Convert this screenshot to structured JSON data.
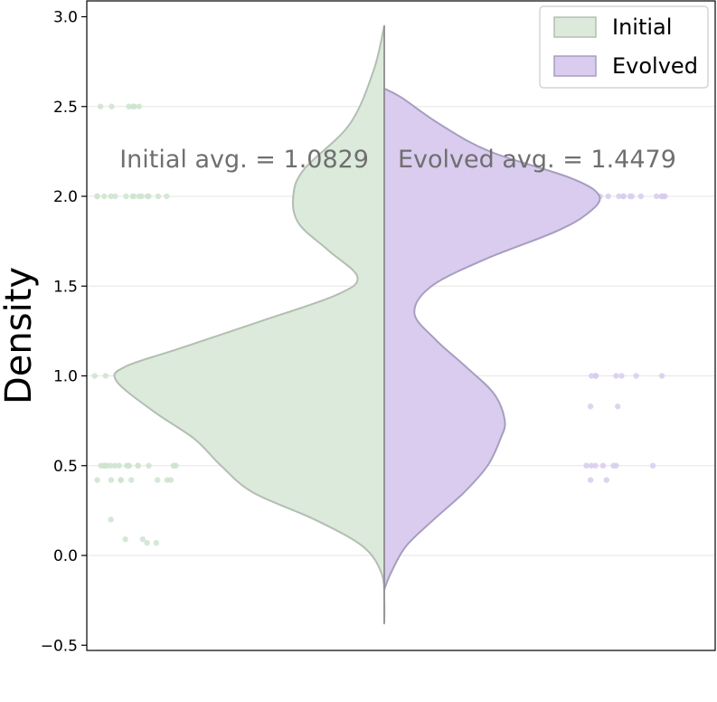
{
  "chart_data": {
    "type": "violin",
    "ylabel": "Density",
    "xlabel": "",
    "ylim": [
      -0.5,
      3.0
    ],
    "yticks": [
      -0.5,
      0.0,
      0.5,
      1.0,
      1.5,
      2.0,
      2.5,
      3.0
    ],
    "ytick_labels": [
      "−0.5",
      "0.0",
      "0.5",
      "1.0",
      "1.5",
      "2.0",
      "2.5",
      "3.0"
    ],
    "grid": "horizontal",
    "legend": {
      "placement": "top-right",
      "entries": [
        {
          "label": "Initial",
          "color": "#dbeadb"
        },
        {
          "label": "Evolved",
          "color": "#d9ccee"
        }
      ]
    },
    "annotations": [
      {
        "text": "Initial avg. = 1.0829",
        "series": "Initial"
      },
      {
        "text": "Evolved avg. = 1.4479",
        "series": "Evolved"
      }
    ],
    "series": [
      {
        "name": "Initial",
        "side": "left",
        "fill": "#dbeadb",
        "edge": "#b3beb3",
        "dot_color": "#cfe3cf",
        "mean": 1.0829,
        "density_profile": [
          {
            "y": -0.38,
            "w": 0.0
          },
          {
            "y": -0.25,
            "w": 0.0
          },
          {
            "y": -0.1,
            "w": 0.01
          },
          {
            "y": 0.05,
            "w": 0.08
          },
          {
            "y": 0.2,
            "w": 0.26
          },
          {
            "y": 0.35,
            "w": 0.49
          },
          {
            "y": 0.5,
            "w": 0.61
          },
          {
            "y": 0.65,
            "w": 0.71
          },
          {
            "y": 0.8,
            "w": 0.86
          },
          {
            "y": 0.97,
            "w": 1.0
          },
          {
            "y": 1.05,
            "w": 0.97
          },
          {
            "y": 1.15,
            "w": 0.77
          },
          {
            "y": 1.3,
            "w": 0.47
          },
          {
            "y": 1.45,
            "w": 0.18
          },
          {
            "y": 1.55,
            "w": 0.1
          },
          {
            "y": 1.7,
            "w": 0.21
          },
          {
            "y": 1.85,
            "w": 0.32
          },
          {
            "y": 2.0,
            "w": 0.34
          },
          {
            "y": 2.15,
            "w": 0.3
          },
          {
            "y": 2.4,
            "w": 0.13
          },
          {
            "y": 2.7,
            "w": 0.04
          },
          {
            "y": 2.95,
            "w": 0.0
          }
        ],
        "points": [
          {
            "y": 2.5,
            "count": 6
          },
          {
            "y": 2.0,
            "count": 14
          },
          {
            "y": 1.0,
            "count": 3
          },
          {
            "y": 0.5,
            "count": 16
          },
          {
            "y": 0.42,
            "count": 8
          },
          {
            "y": 0.2,
            "count": 1
          },
          {
            "y": 0.09,
            "count": 2
          },
          {
            "y": 0.07,
            "count": 2
          }
        ]
      },
      {
        "name": "Evolved",
        "side": "right",
        "fill": "#d9ccee",
        "edge": "#a69ec0",
        "dot_color": "#d8cdef",
        "mean": 1.4479,
        "density_profile": [
          {
            "y": -0.19,
            "w": 0.0
          },
          {
            "y": -0.1,
            "w": 0.03
          },
          {
            "y": 0.05,
            "w": 0.1
          },
          {
            "y": 0.2,
            "w": 0.23
          },
          {
            "y": 0.35,
            "w": 0.37
          },
          {
            "y": 0.5,
            "w": 0.48
          },
          {
            "y": 0.65,
            "w": 0.54
          },
          {
            "y": 0.75,
            "w": 0.56
          },
          {
            "y": 0.9,
            "w": 0.51
          },
          {
            "y": 1.05,
            "w": 0.38
          },
          {
            "y": 1.2,
            "w": 0.24
          },
          {
            "y": 1.35,
            "w": 0.14
          },
          {
            "y": 1.5,
            "w": 0.22
          },
          {
            "y": 1.65,
            "w": 0.47
          },
          {
            "y": 1.8,
            "w": 0.79
          },
          {
            "y": 1.9,
            "w": 0.94
          },
          {
            "y": 2.0,
            "w": 1.0
          },
          {
            "y": 2.1,
            "w": 0.87
          },
          {
            "y": 2.25,
            "w": 0.49
          },
          {
            "y": 2.4,
            "w": 0.26
          },
          {
            "y": 2.55,
            "w": 0.08
          },
          {
            "y": 2.6,
            "w": 0.0
          }
        ],
        "points": [
          {
            "y": 2.0,
            "count": 16
          },
          {
            "y": 1.0,
            "count": 8
          },
          {
            "y": 0.83,
            "count": 2
          },
          {
            "y": 0.5,
            "count": 7
          },
          {
            "y": 0.42,
            "count": 2
          }
        ]
      }
    ]
  }
}
